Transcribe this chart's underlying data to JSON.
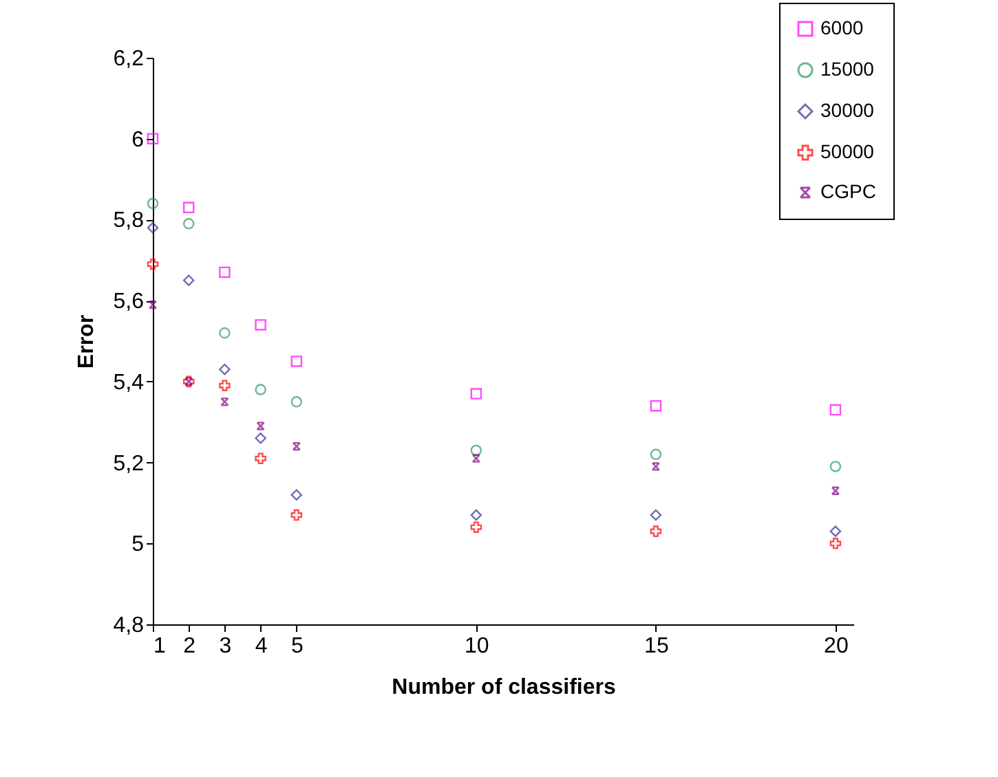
{
  "chart_data": {
    "type": "scatter",
    "xlabel": "Number of classifiers",
    "ylabel": "Error",
    "x": [
      1,
      2,
      3,
      4,
      5,
      10,
      15,
      20
    ],
    "series": [
      {
        "name": "6000",
        "color": "#ff00ff",
        "marker": "square",
        "values": [
          6.0,
          5.83,
          5.67,
          5.54,
          5.45,
          5.37,
          5.34,
          5.33
        ]
      },
      {
        "name": "15000",
        "color": "#339966",
        "marker": "circle",
        "values": [
          5.84,
          5.79,
          5.52,
          5.38,
          5.35,
          5.23,
          5.22,
          5.19
        ]
      },
      {
        "name": "30000",
        "color": "#333399",
        "marker": "diamond",
        "values": [
          5.78,
          5.65,
          5.43,
          5.26,
          5.12,
          5.07,
          5.07,
          5.03
        ]
      },
      {
        "name": "50000",
        "color": "#ff0000",
        "marker": "cross",
        "values": [
          5.69,
          5.4,
          5.39,
          5.21,
          5.07,
          5.04,
          5.03,
          5.0
        ]
      },
      {
        "name": "CGPC",
        "color": "#800080",
        "marker": "x",
        "values": [
          5.59,
          5.4,
          5.35,
          5.29,
          5.24,
          5.21,
          5.19,
          5.13
        ]
      }
    ],
    "xlim": [
      1,
      20.5
    ],
    "xticks": [
      1,
      2,
      3,
      4,
      5,
      10,
      15,
      20
    ],
    "ylim": [
      4.8,
      6.2
    ],
    "yticks": [
      {
        "value": 4.8,
        "label": "4,8"
      },
      5,
      {
        "value": 5.2,
        "label": "5,2"
      },
      {
        "value": 5.4,
        "label": "5,4"
      },
      {
        "value": 5.6,
        "label": "5,6"
      },
      {
        "value": 5.8,
        "label": "5,8"
      },
      6,
      {
        "value": 6.2,
        "label": "6,2"
      }
    ],
    "grid": false,
    "legend": "top right"
  }
}
